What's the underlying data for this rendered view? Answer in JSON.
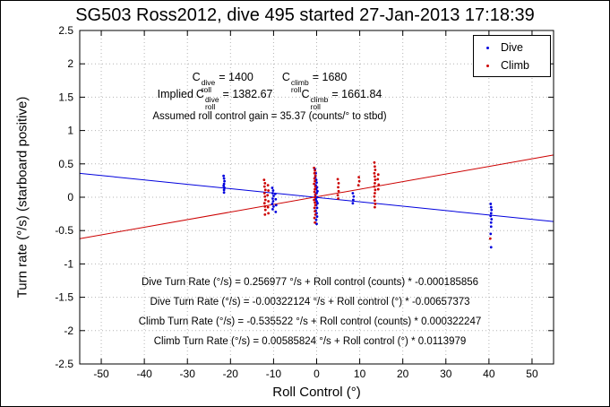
{
  "title": "SG503 Ross2012, dive 495 started 27-Jan-2013 17:18:39",
  "annotations": {
    "line1": {
      "base1": "C",
      "sup1": "dive",
      "sub1": "roll",
      "val1": "= 1400",
      "base2": "C",
      "sup2": "climb",
      "sub2": "roll",
      "val2": "= 1680"
    },
    "line2": {
      "prefix": "Implied",
      "base1": "C",
      "sup1": "dive",
      "sub1": "roll",
      "val1": "= 1382.67",
      "base2": "C",
      "sup2": "climb",
      "sub2": "roll",
      "val2": "= 1661.84"
    },
    "line3": "Assumed roll control gain = 35.37 (counts/° to stbd)",
    "fits": [
      "Dive Turn Rate (°/s) = 0.256977 °/s + Roll control (counts) * -0.000185856",
      "Dive Turn Rate (°/s) = -0.00322124 °/s + Roll control (°) * -0.00657373",
      "Climb Turn Rate (°/s) = -0.535522 °/s + Roll control (counts) * 0.000322247",
      "Climb Turn Rate (°/s) = 0.00585824 °/s + Roll control (°) * 0.0113979"
    ]
  },
  "chart_data": {
    "type": "scatter",
    "title": "SG503 Ross2012, dive 495 started 27-Jan-2013 17:18:39",
    "xlabel": "Roll Control (°)",
    "ylabel": "Turn rate (°/s) (starboard positive)",
    "xlim": [
      -55,
      55
    ],
    "ylim": [
      -2.5,
      2.5
    ],
    "xticks": [
      -50,
      -40,
      -30,
      -20,
      -10,
      0,
      10,
      20,
      30,
      40,
      50
    ],
    "yticks": [
      -2.5,
      -2,
      -1.5,
      -1,
      -0.5,
      0,
      0.5,
      1,
      1.5,
      2,
      2.5
    ],
    "grid": true,
    "grid_color": "#b4b4b4",
    "legend_position": "top-right",
    "series": [
      {
        "name": "Dive",
        "color": "#0000dd",
        "marker": "dot",
        "points": [
          [
            -21.6,
            0.32
          ],
          [
            -21.5,
            0.28
          ],
          [
            -21.4,
            0.24
          ],
          [
            -21.5,
            0.2
          ],
          [
            -21.6,
            0.17
          ],
          [
            -21.4,
            0.14
          ],
          [
            -21.5,
            0.11
          ],
          [
            -21.5,
            0.07
          ],
          [
            -10.3,
            0.14
          ],
          [
            -10.1,
            0.1
          ],
          [
            -10.2,
            0.06
          ],
          [
            -10.0,
            0.02
          ],
          [
            -10.2,
            -0.02
          ],
          [
            -10.1,
            -0.06
          ],
          [
            -10.3,
            -0.1
          ],
          [
            -10.0,
            -0.14
          ],
          [
            -10.2,
            -0.18
          ],
          [
            -9.6,
            0.05
          ],
          [
            -9.5,
            -0.03
          ],
          [
            -9.4,
            -0.12
          ],
          [
            -9.5,
            -0.22
          ],
          [
            -0.4,
            0.42
          ],
          [
            -0.2,
            0.36
          ],
          [
            -0.3,
            0.3
          ],
          [
            -0.1,
            0.26
          ],
          [
            0.0,
            0.22
          ],
          [
            -0.2,
            0.18
          ],
          [
            0.1,
            0.15
          ],
          [
            -0.1,
            0.12
          ],
          [
            0.2,
            0.09
          ],
          [
            0.0,
            0.06
          ],
          [
            -0.3,
            0.03
          ],
          [
            0.1,
            0.0
          ],
          [
            -0.2,
            -0.03
          ],
          [
            0.0,
            -0.06
          ],
          [
            0.2,
            -0.09
          ],
          [
            -0.1,
            -0.12
          ],
          [
            0.1,
            -0.16
          ],
          [
            -0.2,
            -0.2
          ],
          [
            0.0,
            -0.24
          ],
          [
            0.1,
            -0.29
          ],
          [
            -0.1,
            -0.34
          ],
          [
            0.0,
            -0.4
          ],
          [
            8.4,
            0.06
          ],
          [
            8.6,
            0.01
          ],
          [
            8.5,
            -0.04
          ],
          [
            8.4,
            -0.09
          ],
          [
            40.4,
            -0.1
          ],
          [
            40.5,
            -0.15
          ],
          [
            40.6,
            -0.19
          ],
          [
            40.5,
            -0.24
          ],
          [
            40.4,
            -0.28
          ],
          [
            40.6,
            -0.33
          ],
          [
            40.5,
            -0.38
          ],
          [
            40.5,
            -0.44
          ],
          [
            40.4,
            -0.55
          ],
          [
            40.5,
            -0.75
          ]
        ]
      },
      {
        "name": "Climb",
        "color": "#cc0000",
        "marker": "dot",
        "points": [
          [
            -12.2,
            0.26
          ],
          [
            -12.0,
            0.21
          ],
          [
            -12.1,
            0.16
          ],
          [
            -11.9,
            0.11
          ],
          [
            -12.1,
            0.06
          ],
          [
            -12.0,
            0.01
          ],
          [
            -11.9,
            -0.04
          ],
          [
            -12.1,
            -0.09
          ],
          [
            -12.0,
            -0.14
          ],
          [
            -11.9,
            -0.19
          ],
          [
            -12.0,
            -0.26
          ],
          [
            -11.3,
            0.18
          ],
          [
            -11.2,
            0.1
          ],
          [
            -11.4,
            0.03
          ],
          [
            -11.2,
            -0.06
          ],
          [
            -11.3,
            -0.15
          ],
          [
            -11.2,
            -0.24
          ],
          [
            -0.6,
            0.44
          ],
          [
            -0.4,
            0.4
          ],
          [
            -0.5,
            0.36
          ],
          [
            -0.3,
            0.32
          ],
          [
            -0.5,
            0.28
          ],
          [
            -0.4,
            0.24
          ],
          [
            -0.6,
            0.2
          ],
          [
            -0.3,
            0.16
          ],
          [
            -0.4,
            0.12
          ],
          [
            -0.5,
            0.08
          ],
          [
            -0.3,
            0.04
          ],
          [
            -0.4,
            0.0
          ],
          [
            -0.6,
            -0.04
          ],
          [
            -0.4,
            -0.08
          ],
          [
            -0.3,
            -0.12
          ],
          [
            -0.5,
            -0.16
          ],
          [
            -0.4,
            -0.21
          ],
          [
            -0.3,
            -0.26
          ],
          [
            -0.5,
            -0.31
          ],
          [
            -0.4,
            -0.38
          ],
          [
            4.9,
            0.27
          ],
          [
            5.1,
            0.21
          ],
          [
            5.0,
            0.15
          ],
          [
            5.1,
            0.09
          ],
          [
            4.9,
            0.03
          ],
          [
            5.0,
            -0.02
          ],
          [
            9.8,
            0.3
          ],
          [
            9.9,
            0.24
          ],
          [
            9.7,
            0.18
          ],
          [
            13.4,
            0.52
          ],
          [
            13.5,
            0.46
          ],
          [
            13.6,
            0.41
          ],
          [
            13.4,
            0.36
          ],
          [
            13.5,
            0.31
          ],
          [
            13.6,
            0.26
          ],
          [
            13.5,
            0.21
          ],
          [
            13.4,
            0.16
          ],
          [
            13.6,
            0.11
          ],
          [
            13.5,
            0.06
          ],
          [
            13.4,
            0.01
          ],
          [
            13.5,
            -0.05
          ],
          [
            13.6,
            -0.1
          ],
          [
            13.5,
            -0.15
          ],
          [
            14.3,
            0.34
          ],
          [
            14.2,
            0.27
          ],
          [
            14.4,
            0.19
          ],
          [
            14.3,
            0.12
          ],
          [
            40.3,
            -0.62
          ]
        ]
      }
    ],
    "fit_lines": [
      {
        "series": "Dive",
        "color": "#0000dd",
        "intercept": -0.00322124,
        "slope": -0.00657373
      },
      {
        "series": "Climb",
        "color": "#cc0000",
        "intercept": 0.00585824,
        "slope": 0.0113979
      }
    ]
  }
}
